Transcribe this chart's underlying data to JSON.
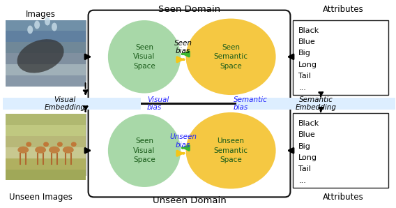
{
  "fig_width": 5.68,
  "fig_height": 2.98,
  "dpi": 100,
  "bg_color": "#ffffff",
  "seen_domain_label": "Seen Domain",
  "unseen_domain_label": "Unseen Domain",
  "images_label": "Images",
  "unseen_images_label": "Unseen Images",
  "attributes_label": "Attributes",
  "attributes_list": [
    "Black",
    "Blue",
    "Big",
    "Long",
    "Tail",
    "..."
  ],
  "visual_embedding_label": "Visual\nEmbedding",
  "semantic_embedding_label": "Semantic\nEmbedding",
  "seen_visual_space_label": "Seen\nVisual\nSpace",
  "seen_semantic_space_label": "Seen\nSemantic\nSpace",
  "unseen_visual_space_label": "Seen\nVisual\nSpace",
  "unseen_semantic_space_label": "Unseen\nSemantic\nSpace",
  "seen_bias_label": "Seen\nbias",
  "visual_bias_label": "Visual\nbias",
  "semantic_bias_label": "Semantic\nbias",
  "unseen_bias_label": "Unseen\nbias",
  "green_arrow_color": "#3db830",
  "yellow_arrow_color": "#f5c518",
  "blue_label_color": "#2222ff",
  "dark_green_text": "#1a5c1a",
  "black_color": "#000000",
  "light_blue_bg": "#ddeeff",
  "ellipse_green": "#a8d8a8",
  "ellipse_yellow": "#f5c842",
  "box_bg": "#ffffff",
  "box_edge": "#111111",
  "attr_box_bg": "#ffffff",
  "attr_box_edge": "#222222",
  "whale_bg": "#7a9ab5",
  "deer_bg": "#9aaa7a"
}
